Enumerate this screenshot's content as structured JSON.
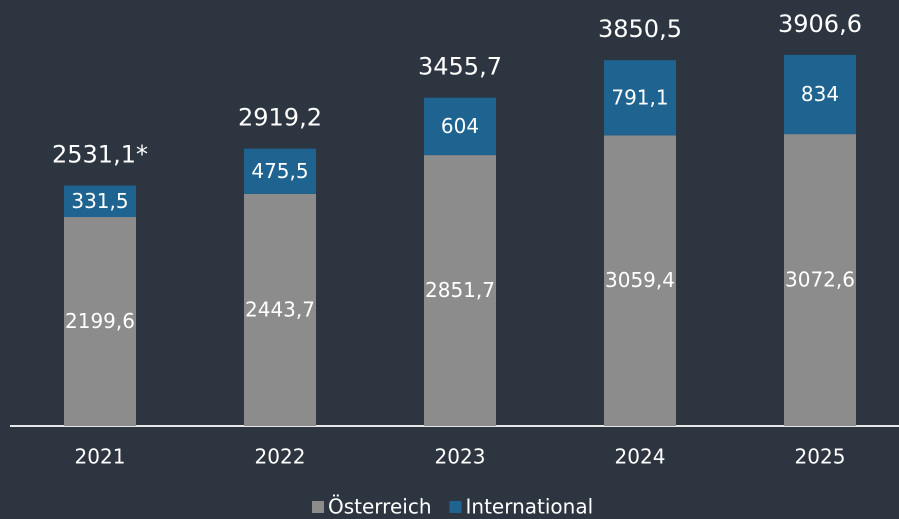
{
  "chart_data": {
    "type": "stacked_bar",
    "categories": [
      "2021",
      "2022",
      "2023",
      "2024",
      "2025"
    ],
    "series": [
      {
        "name": "Österreich",
        "color": "#8c8c8c",
        "values": [
          2199.6,
          2443.7,
          2851.7,
          3059.4,
          3072.6
        ],
        "value_labels": [
          "2199,6",
          "2443,7",
          "2851,7",
          "3059,4",
          "3072,6"
        ]
      },
      {
        "name": "International",
        "color": "#1f6391",
        "values": [
          331.5,
          475.5,
          604,
          791.1,
          834
        ],
        "value_labels": [
          "331,5",
          "475,5",
          "604",
          "791,1",
          "834"
        ]
      }
    ],
    "totals": [
      2531.1,
      2919.2,
      3455.7,
      3850.5,
      3906.6
    ],
    "total_labels": [
      "2531,1*",
      "2919,2",
      "3455,7",
      "3850,5",
      "3906,6"
    ],
    "ylim": [
      0,
      4200
    ]
  }
}
